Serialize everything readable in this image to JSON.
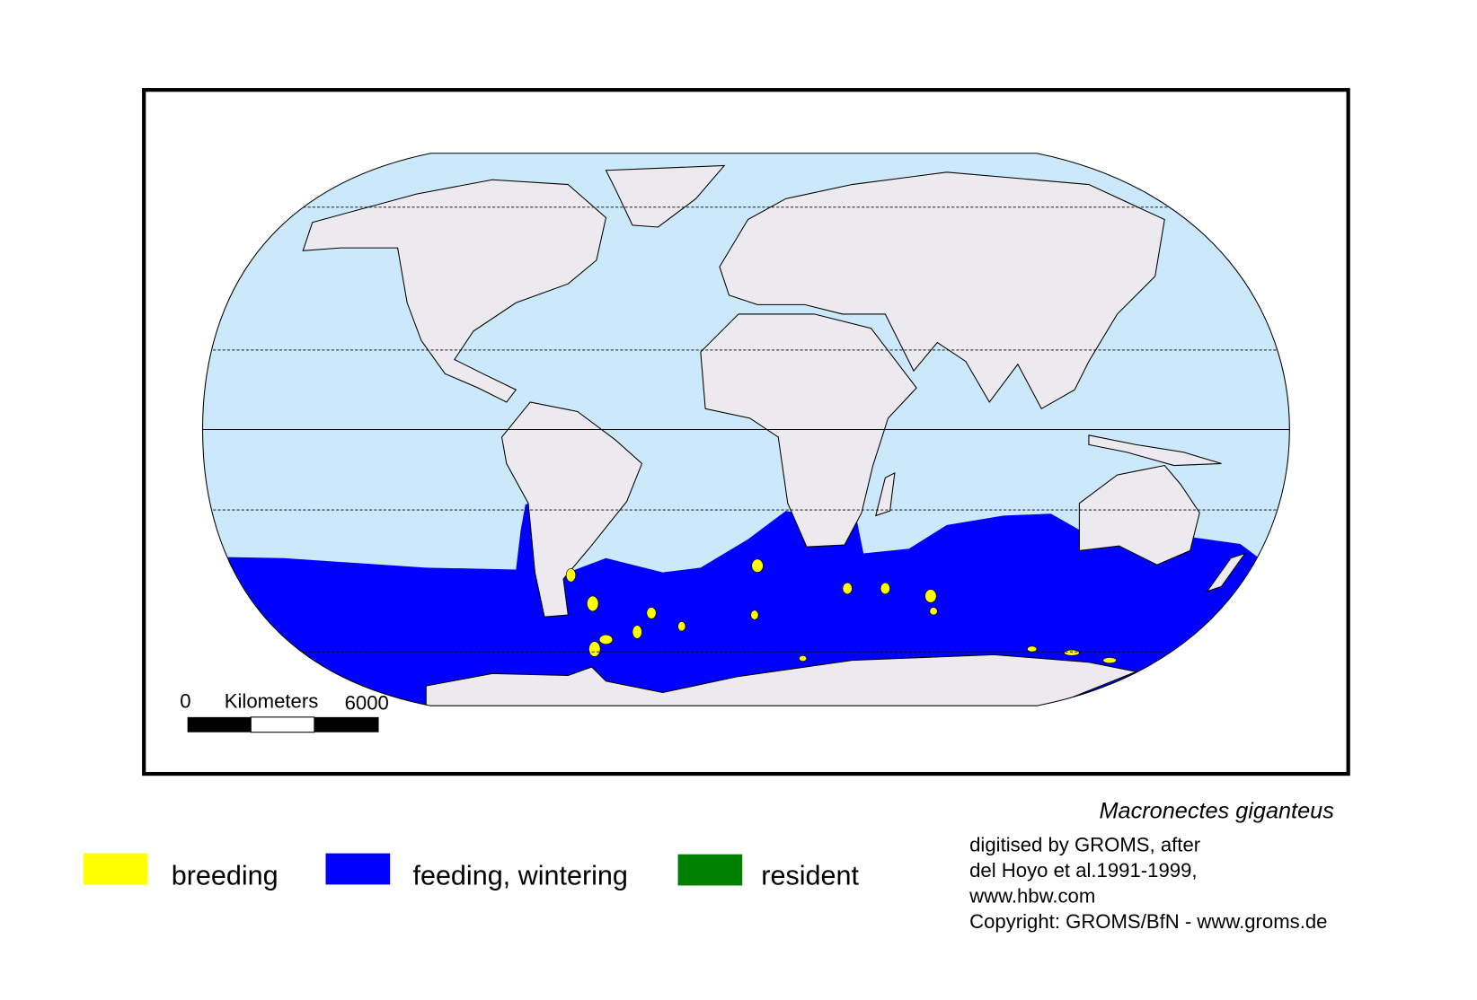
{
  "map": {
    "species": "Macronectes giganteus",
    "colors": {
      "ocean": "#cce8fb",
      "land": "#ece9ef",
      "breeding": "#ffff00",
      "feeding": "#0000ff",
      "resident": "#008000"
    },
    "scale_bar": {
      "start": "0",
      "unit": "Kilometers",
      "end": "6000"
    }
  },
  "legend": [
    {
      "label": "breeding",
      "color": "#ffff00"
    },
    {
      "label": "feeding, wintering",
      "color": "#0000ff"
    },
    {
      "label": "resident",
      "color": "#008000"
    }
  ],
  "credits": {
    "line1": "digitised by GROMS, after",
    "line2": "del Hoyo et al.1991-1999,",
    "line3": "www.hbw.com",
    "line4": "Copyright: GROMS/BfN - www.groms.de"
  }
}
